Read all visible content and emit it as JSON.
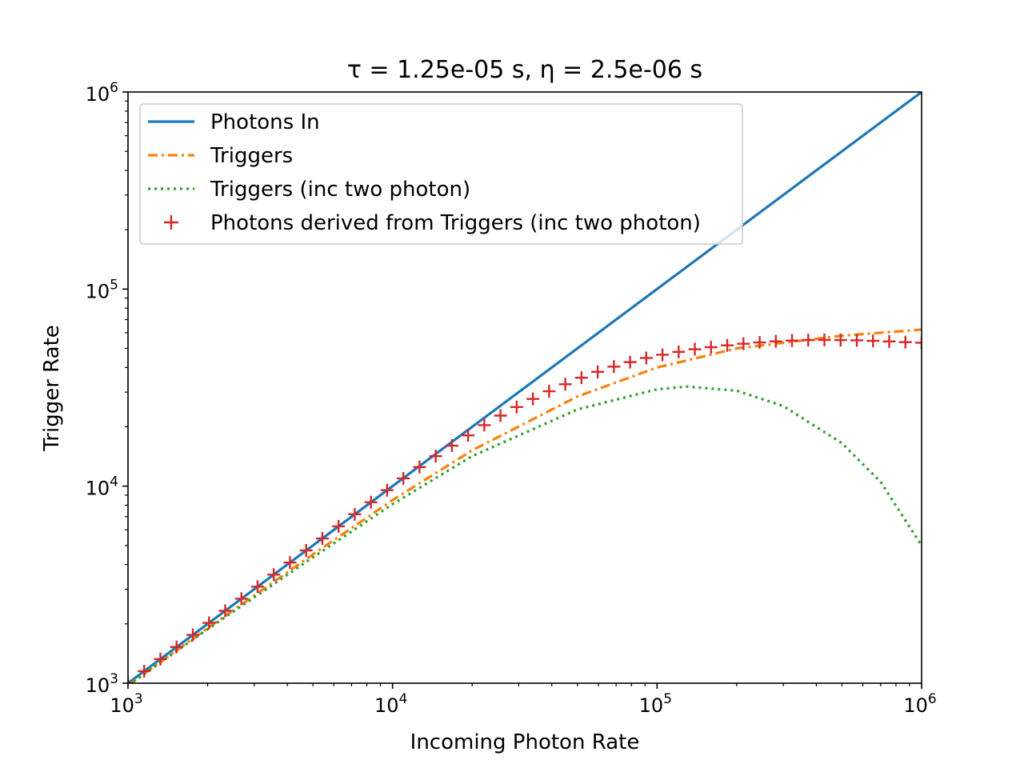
{
  "chart_data": {
    "type": "line",
    "title": "τ =  1.25e-05 s, η =  2.5e-06 s",
    "xlabel": "Incoming Photon Rate",
    "ylabel": "Trigger Rate",
    "xscale": "log",
    "yscale": "log",
    "xlim": [
      1000,
      1000000
    ],
    "ylim": [
      1000,
      1000000
    ],
    "x_tick_labels": [
      {
        "base": "10",
        "exp": "3",
        "value": 1000
      },
      {
        "base": "10",
        "exp": "4",
        "value": 10000
      },
      {
        "base": "10",
        "exp": "5",
        "value": 100000
      },
      {
        "base": "10",
        "exp": "6",
        "value": 1000000
      }
    ],
    "y_tick_labels": [
      {
        "base": "10",
        "exp": "3",
        "value": 1000
      },
      {
        "base": "10",
        "exp": "4",
        "value": 10000
      },
      {
        "base": "10",
        "exp": "5",
        "value": 100000
      },
      {
        "base": "10",
        "exp": "6",
        "value": 1000000
      }
    ],
    "legend_position": "top-left",
    "series": [
      {
        "name": "Photons In",
        "style": "solid",
        "color": "#1f77b4",
        "x": [
          1000,
          10000,
          100000,
          1000000
        ],
        "y": [
          1000,
          10000,
          100000,
          1000000
        ]
      },
      {
        "name": "Triggers",
        "style": "dashdot",
        "color": "#ff7f0e",
        "x": [
          1000,
          2000,
          5000,
          10000,
          20000,
          50000,
          100000,
          200000,
          500000,
          1000000
        ],
        "y": [
          975,
          1900,
          4500,
          8500,
          15200,
          28500,
          40000,
          50000,
          58000,
          62300
        ]
      },
      {
        "name": "Triggers (inc two photon)",
        "style": "dotted",
        "color": "#2ca02c",
        "x": [
          1000,
          2000,
          5000,
          10000,
          20000,
          50000,
          100000,
          130000,
          200000,
          300000,
          500000,
          700000,
          1000000
        ],
        "y": [
          975,
          1880,
          4350,
          8100,
          14200,
          24500,
          31000,
          32000,
          30500,
          25500,
          16500,
          10500,
          5000
        ]
      },
      {
        "name": "Photons derived from Triggers (inc two photon)",
        "style": "plus",
        "color": "#d62728",
        "x": [
          1000,
          1151,
          1326,
          1526,
          1758,
          2024,
          2330,
          2683,
          3089,
          3556,
          4095,
          4715,
          5429,
          6251,
          7197,
          8286,
          9541,
          10985,
          12649,
          14563,
          16768,
          19307,
          22230,
          25595,
          29471,
          33932,
          39069,
          44984,
          51795,
          59636,
          68665,
          79060,
          91029,
          104811,
          120679,
          138949,
          159985,
          184207,
          212095,
          244205,
          281177,
          323745,
          372759,
          429193,
          494171,
          568987,
          655129,
          754312,
          868511,
          1000000
        ],
        "y": [
          1000,
          1151,
          1326,
          1526,
          1758,
          2024,
          2330,
          2683,
          3089,
          3556,
          4095,
          4715,
          5429,
          6251,
          7197,
          8286,
          9541,
          10950,
          12500,
          14200,
          16050,
          18100,
          20400,
          22800,
          25200,
          27700,
          30300,
          32900,
          35500,
          38000,
          40400,
          42600,
          44700,
          46400,
          48000,
          49500,
          50700,
          51800,
          52800,
          53600,
          54300,
          54800,
          55100,
          55200,
          55100,
          54900,
          54600,
          54200,
          53800,
          53400
        ]
      }
    ]
  }
}
